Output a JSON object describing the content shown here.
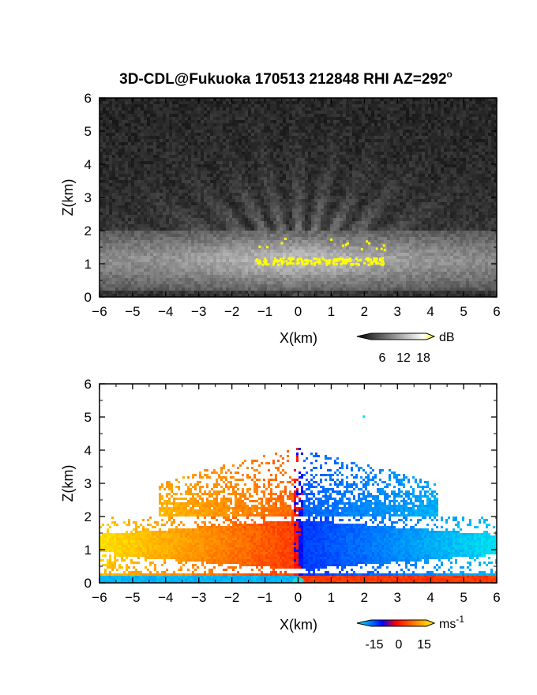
{
  "chart_data": [
    {
      "type": "heatmap",
      "title": "3D-CDL@Fukuoka 170513 212848 RHI AZ=292",
      "title_superscript": "o",
      "xlabel": "X(km)",
      "ylabel": "Z(km)",
      "xlim": [
        -6,
        6
      ],
      "ylim": [
        0,
        6
      ],
      "x_ticks": [
        -6,
        -5,
        -4,
        -3,
        -2,
        -1,
        0,
        1,
        2,
        3,
        4,
        5,
        6
      ],
      "y_ticks": [
        0,
        1,
        2,
        3,
        4,
        5,
        6
      ],
      "quantity": "SNR",
      "colorbar": {
        "unit": "dB",
        "tick_labels": [
          "6",
          "12",
          "18"
        ],
        "colors": [
          "#000000",
          "#ffffff",
          "#ffff00"
        ]
      },
      "features": {
        "aerosol_layer_top_km": 2.0,
        "highlight_color": "#ffff00",
        "highlight_band_km": [
          1.0,
          1.2
        ],
        "highlight_x_range_km": [
          -1.3,
          2.6
        ]
      }
    },
    {
      "type": "heatmap",
      "title": "",
      "xlabel": "X(km)",
      "ylabel": "Z(km)",
      "xlim": [
        -6,
        6
      ],
      "ylim": [
        0,
        6
      ],
      "x_ticks": [
        -6,
        -5,
        -4,
        -3,
        -2,
        -1,
        0,
        1,
        2,
        3,
        4,
        5,
        6
      ],
      "y_ticks": [
        0,
        1,
        2,
        3,
        4,
        5,
        6
      ],
      "quantity": "Doppler velocity",
      "colorbar": {
        "unit": "ms",
        "unit_superscript": "-1",
        "tick_labels": [
          "-15",
          "0",
          "15"
        ],
        "range": [
          -20,
          20
        ],
        "colors": [
          "#00ffff",
          "#0000ff",
          "#ff0000",
          "#ffff00"
        ]
      },
      "features": {
        "layer_top_km": 2.0,
        "positive_velocity_side": "left",
        "negative_velocity_side": "right"
      }
    }
  ]
}
